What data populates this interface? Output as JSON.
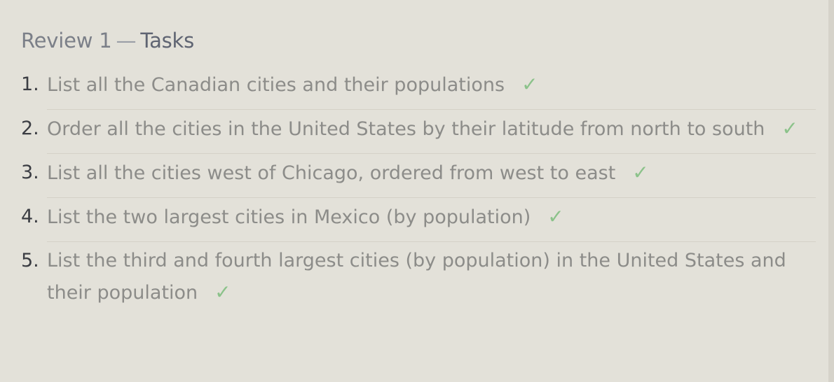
{
  "review": {
    "title_prefix": "Review 1",
    "separator": "—",
    "title_suffix": "Tasks"
  },
  "tasks": [
    {
      "number": "1.",
      "text": "List all the Canadian cities and their populations",
      "done": true,
      "check_glyph": "✓"
    },
    {
      "number": "2.",
      "text": "Order all the cities in the United States by their latitude from north to south",
      "done": true,
      "check_glyph": "✓"
    },
    {
      "number": "3.",
      "text": "List all the cities west of Chicago, ordered from west to east",
      "done": true,
      "check_glyph": "✓"
    },
    {
      "number": "4.",
      "text": "List the two largest cities in Mexico (by population)",
      "done": true,
      "check_glyph": "✓"
    },
    {
      "number": "5.",
      "text": "List the third and fourth largest cities (by population) in the United States and their population",
      "done": true,
      "check_glyph": "✓"
    }
  ],
  "colors": {
    "background": "#e3e1d9",
    "task_text": "#8c8c89",
    "number_text": "#3b3d43",
    "check": "#8bc28a"
  }
}
